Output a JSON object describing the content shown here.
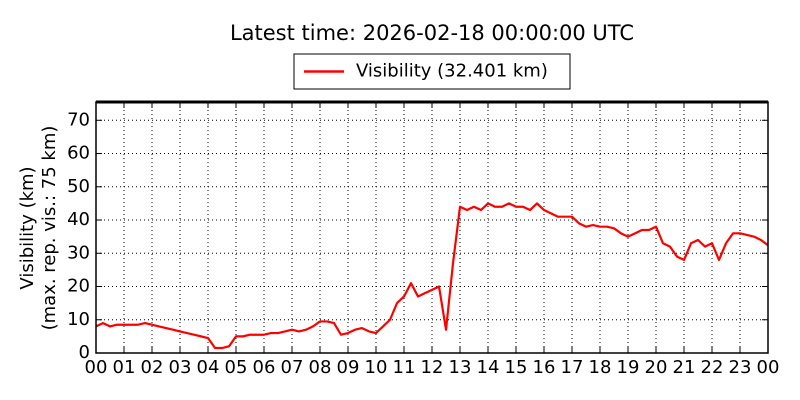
{
  "chart_data": {
    "type": "line",
    "title": "Latest time: 2026-02-18 00:00:00 UTC",
    "ylabel": [
      "Visibility (km)",
      "(max. rep. vis.: 75 km)"
    ],
    "x": [
      0,
      0.25,
      0.5,
      0.75,
      1,
      1.25,
      1.5,
      1.75,
      2,
      2.25,
      2.5,
      2.75,
      3,
      3.25,
      3.5,
      3.75,
      4,
      4.25,
      4.5,
      4.75,
      5,
      5.25,
      5.5,
      5.75,
      6,
      6.25,
      6.5,
      6.75,
      7,
      7.25,
      7.5,
      7.75,
      8,
      8.25,
      8.5,
      8.75,
      9,
      9.25,
      9.5,
      9.75,
      10,
      10.25,
      10.5,
      10.75,
      11,
      11.25,
      11.5,
      11.75,
      12,
      12.25,
      12.5,
      12.75,
      13,
      13.25,
      13.5,
      13.75,
      14,
      14.25,
      14.5,
      14.75,
      15,
      15.25,
      15.5,
      15.75,
      16,
      16.25,
      16.5,
      16.75,
      17,
      17.25,
      17.5,
      17.75,
      18,
      18.25,
      18.5,
      18.75,
      19,
      19.25,
      19.5,
      19.75,
      20,
      20.25,
      20.5,
      20.75,
      21,
      21.25,
      21.5,
      21.75,
      22,
      22.25,
      22.5,
      22.75,
      23,
      23.25,
      23.5,
      23.75,
      24
    ],
    "series": [
      {
        "name": "Visibility (32.401 km)",
        "color": "#ff0000",
        "values": [
          8,
          9,
          8,
          8.5,
          8.5,
          8.5,
          8.5,
          9,
          8.5,
          8,
          7.5,
          7,
          6.5,
          6,
          5.5,
          5,
          4.5,
          1.5,
          1.5,
          2,
          5,
          5,
          5.5,
          5.5,
          5.5,
          6,
          6,
          6.5,
          7,
          6.5,
          7,
          8,
          9.5,
          9.5,
          9,
          5.5,
          6,
          7,
          7.5,
          6.5,
          6,
          8,
          10,
          15,
          17,
          21,
          17,
          18,
          19,
          20,
          7,
          27,
          44,
          43,
          44,
          43,
          45,
          44,
          44,
          45,
          44,
          44,
          43,
          45,
          43,
          42,
          41,
          41,
          41,
          39,
          38,
          38.5,
          38,
          38,
          37.5,
          36,
          35,
          36,
          37,
          37,
          38,
          33,
          32,
          29,
          28,
          33,
          34,
          32,
          33,
          28,
          33,
          36,
          36,
          35.5,
          35,
          34,
          32.401
        ]
      }
    ],
    "xlim": [
      0,
      24
    ],
    "xticks": [
      {
        "value": 0,
        "label": "00"
      },
      {
        "value": 1,
        "label": "01"
      },
      {
        "value": 2,
        "label": "02"
      },
      {
        "value": 3,
        "label": "03"
      },
      {
        "value": 4,
        "label": "04"
      },
      {
        "value": 5,
        "label": "05"
      },
      {
        "value": 6,
        "label": "06"
      },
      {
        "value": 7,
        "label": "07"
      },
      {
        "value": 8,
        "label": "08"
      },
      {
        "value": 9,
        "label": "09"
      },
      {
        "value": 10,
        "label": "10"
      },
      {
        "value": 11,
        "label": "11"
      },
      {
        "value": 12,
        "label": "12"
      },
      {
        "value": 13,
        "label": "13"
      },
      {
        "value": 14,
        "label": "14"
      },
      {
        "value": 15,
        "label": "15"
      },
      {
        "value": 16,
        "label": "16"
      },
      {
        "value": 17,
        "label": "17"
      },
      {
        "value": 18,
        "label": "18"
      },
      {
        "value": 19,
        "label": "19"
      },
      {
        "value": 20,
        "label": "20"
      },
      {
        "value": 21,
        "label": "21"
      },
      {
        "value": 22,
        "label": "22"
      },
      {
        "value": 23,
        "label": "23"
      },
      {
        "value": 24,
        "label": "00"
      }
    ],
    "ylim": [
      0,
      75.5
    ],
    "yticks": [
      0,
      10,
      20,
      30,
      40,
      50,
      60,
      70
    ],
    "grid": true,
    "legend": "top"
  }
}
